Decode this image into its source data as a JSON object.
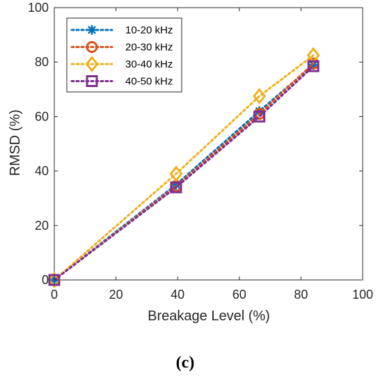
{
  "chart_data": {
    "type": "line",
    "xlabel": "Breakage Level (%)",
    "ylabel": "RMSD (%)",
    "xlim": [
      0,
      100
    ],
    "ylim": [
      0,
      100
    ],
    "xticks": [
      0,
      20,
      40,
      60,
      80,
      100
    ],
    "yticks": [
      0,
      20,
      40,
      60,
      80,
      100
    ],
    "grid": false,
    "legend_position": "top-left",
    "x": [
      0,
      39.5,
      66.5,
      84
    ],
    "series": [
      {
        "name": "10-20 kHz",
        "values": [
          0,
          35,
          62,
          79
        ],
        "color": "#0072BD",
        "marker": "asterisk",
        "line_style": "dotted"
      },
      {
        "name": "20-30 kHz",
        "values": [
          0,
          34.5,
          61,
          79.5
        ],
        "color": "#D95319",
        "marker": "circle",
        "line_style": "dotted"
      },
      {
        "name": "30-40 kHz",
        "values": [
          0,
          39,
          67.5,
          82.5
        ],
        "color": "#EDB120",
        "marker": "diamond",
        "line_style": "dotted"
      },
      {
        "name": "40-50 kHz",
        "values": [
          0,
          34,
          60,
          78.5
        ],
        "color": "#7E2F8E",
        "marker": "square",
        "line_style": "dotted"
      }
    ],
    "panel_label": "(c)"
  }
}
